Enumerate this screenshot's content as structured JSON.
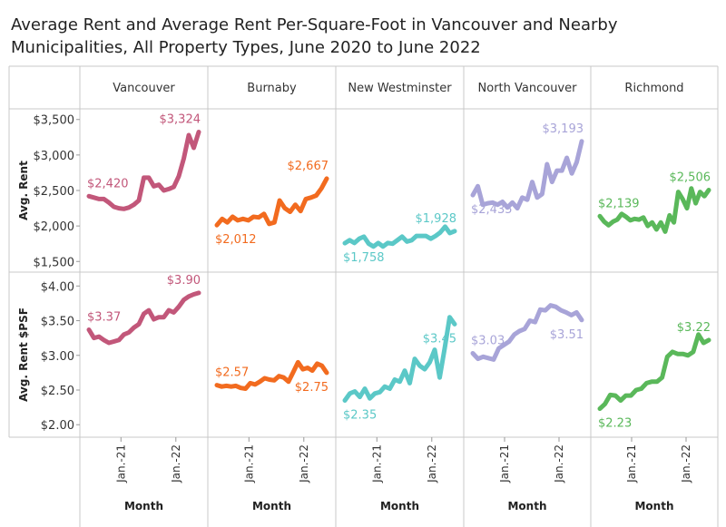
{
  "title": "Average Rent and Average Rent Per-Square-Foot in Vancouver and Nearby Municipalities, All Property Types, June 2020 to June 2022",
  "title_lines": [
    "Average Rent and Average Rent Per-Square-Foot in Vancouver and Nearby",
    "Municipalities, All Property Types, June 2020 to June 2022"
  ],
  "chart_data": {
    "type": "line",
    "x_label": "Month",
    "x_ticks": [
      "Jan.-21",
      "Jan.-22"
    ],
    "x_range": [
      "2020-06",
      "2022-06"
    ],
    "months": [
      "2020-06",
      "2020-07",
      "2020-08",
      "2020-09",
      "2020-10",
      "2020-11",
      "2020-12",
      "2021-01",
      "2021-02",
      "2021-03",
      "2021-04",
      "2021-05",
      "2021-06",
      "2021-07",
      "2021-08",
      "2021-09",
      "2021-10",
      "2021-11",
      "2021-12",
      "2022-01",
      "2022-02",
      "2022-03",
      "2022-04",
      "2022-05",
      "2022-06"
    ],
    "rows": [
      {
        "label": "Avg. Rent",
        "ticks": [
          "$1,500",
          "$2,000",
          "$2,500",
          "$3,000",
          "$3,500"
        ],
        "tick_values": [
          1500,
          2000,
          2500,
          3000,
          3500
        ],
        "range": [
          1350,
          3650
        ]
      },
      {
        "label": "Avg. Rent $PSF",
        "ticks": [
          "$2.00",
          "$2.50",
          "$3.00",
          "$3.50",
          "$4.00"
        ],
        "tick_values": [
          2.0,
          2.5,
          3.0,
          3.5,
          4.0
        ],
        "range": [
          1.82,
          4.2
        ]
      }
    ],
    "panels": [
      {
        "name": "Vancouver",
        "color": "#c2577a",
        "rent": [
          2420,
          2400,
          2380,
          2380,
          2330,
          2270,
          2250,
          2240,
          2260,
          2300,
          2360,
          2680,
          2680,
          2560,
          2580,
          2500,
          2520,
          2550,
          2700,
          2950,
          3280,
          3100,
          3324
        ],
        "rent_labels": {
          "first": "$2,420",
          "last": "$3,324"
        },
        "psf": [
          3.37,
          3.25,
          3.27,
          3.22,
          3.18,
          3.2,
          3.22,
          3.3,
          3.33,
          3.4,
          3.45,
          3.6,
          3.65,
          3.52,
          3.55,
          3.55,
          3.65,
          3.62,
          3.7,
          3.8,
          3.85,
          3.88,
          3.9
        ],
        "psf_labels": {
          "first": "$3.37",
          "last": "$3.90"
        }
      },
      {
        "name": "Burnaby",
        "color": "#f26b1f",
        "rent": [
          2012,
          2100,
          2050,
          2130,
          2080,
          2100,
          2080,
          2130,
          2120,
          2170,
          2030,
          2050,
          2360,
          2250,
          2200,
          2300,
          2210,
          2380,
          2400,
          2430,
          2530,
          2667
        ],
        "rent_labels": {
          "first": "$2,012",
          "last": "$2,667"
        },
        "psf": [
          2.57,
          2.55,
          2.56,
          2.55,
          2.56,
          2.53,
          2.52,
          2.6,
          2.58,
          2.62,
          2.67,
          2.65,
          2.64,
          2.7,
          2.68,
          2.62,
          2.76,
          2.9,
          2.8,
          2.82,
          2.78,
          2.88,
          2.85,
          2.75
        ],
        "psf_labels": {
          "first": "$2.57",
          "last": "$2.75"
        }
      },
      {
        "name": "New Westminster",
        "color": "#5bc8c7",
        "rent": [
          1758,
          1800,
          1760,
          1820,
          1850,
          1750,
          1710,
          1760,
          1710,
          1760,
          1750,
          1800,
          1850,
          1780,
          1800,
          1860,
          1860,
          1860,
          1820,
          1860,
          1910,
          1990,
          1900,
          1928
        ],
        "rent_labels": {
          "first": "$1,758",
          "last": "$1,928"
        },
        "psf": [
          2.35,
          2.45,
          2.48,
          2.4,
          2.52,
          2.38,
          2.45,
          2.47,
          2.55,
          2.52,
          2.65,
          2.62,
          2.78,
          2.6,
          2.95,
          2.85,
          2.8,
          2.9,
          3.08,
          2.68,
          3.1,
          3.55,
          3.45
        ],
        "psf_labels": {
          "first": "$2.35",
          "last": "$3.45"
        }
      },
      {
        "name": "North Vancouver",
        "color": "#a8a4d8",
        "rent": [
          2435,
          2560,
          2300,
          2320,
          2330,
          2300,
          2340,
          2260,
          2330,
          2250,
          2400,
          2370,
          2620,
          2400,
          2450,
          2870,
          2620,
          2780,
          2780,
          2960,
          2740,
          2900,
          3193
        ],
        "rent_labels": {
          "first": "$2,435",
          "last": "$3,193"
        },
        "psf": [
          3.03,
          2.95,
          2.98,
          2.96,
          2.94,
          3.1,
          3.15,
          3.2,
          3.3,
          3.35,
          3.38,
          3.5,
          3.48,
          3.66,
          3.65,
          3.72,
          3.7,
          3.65,
          3.62,
          3.58,
          3.62,
          3.51
        ],
        "psf_labels": {
          "first": "$3.03",
          "last": "$3.51"
        }
      },
      {
        "name": "Richmond",
        "color": "#5ab85a",
        "rent": [
          2139,
          2060,
          2010,
          2060,
          2090,
          2170,
          2130,
          2080,
          2100,
          2090,
          2120,
          2000,
          2050,
          1950,
          2050,
          1920,
          2150,
          2050,
          2480,
          2380,
          2250,
          2530,
          2320,
          2480,
          2420,
          2506
        ],
        "rent_labels": {
          "first": "$2,139",
          "last": "$2,506"
        },
        "psf": [
          2.23,
          2.3,
          2.43,
          2.42,
          2.35,
          2.42,
          2.42,
          2.5,
          2.52,
          2.6,
          2.62,
          2.62,
          2.68,
          2.98,
          3.05,
          3.02,
          3.02,
          3.0,
          3.05,
          3.3,
          3.18,
          3.22
        ],
        "psf_labels": {
          "first": "$2.23",
          "last": "$3.22"
        }
      }
    ]
  }
}
